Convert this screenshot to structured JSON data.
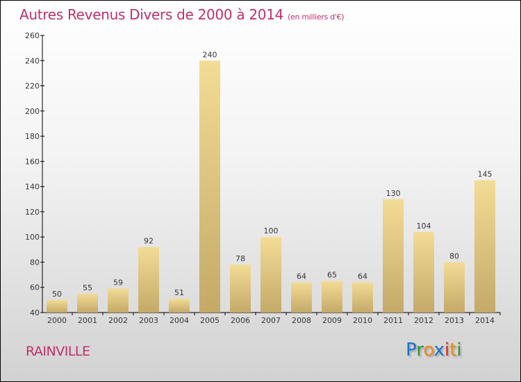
{
  "chart_data": {
    "type": "bar",
    "title": "Autres Revenus Divers de 2000 à 2014",
    "unit": "(en milliers d'€)",
    "xlabel": "",
    "ylabel": "",
    "categories": [
      "2000",
      "2001",
      "2002",
      "2003",
      "2004",
      "2005",
      "2006",
      "2007",
      "2008",
      "2009",
      "2010",
      "2011",
      "2012",
      "2013",
      "2014"
    ],
    "values": [
      50,
      55,
      59,
      92,
      51,
      240,
      78,
      100,
      64,
      65,
      64,
      130,
      104,
      80,
      145
    ],
    "ylim": [
      40,
      260
    ],
    "yticks": [
      40,
      60,
      80,
      100,
      120,
      140,
      160,
      180,
      200,
      220,
      240,
      260
    ],
    "grid": false,
    "bar_color_light": "#f3dc96",
    "bar_color_dark": "#c4a968"
  },
  "footer": {
    "city": "RAINVILLE",
    "logo": {
      "letters": [
        "P",
        "r",
        "o",
        "x",
        "i",
        "t",
        "i"
      ],
      "colors": [
        "#1a73c9",
        "#2a9a3a",
        "#f08a10",
        "#1a73c9",
        "#e2231a",
        "#f08a10",
        "#2a9a3a"
      ]
    }
  },
  "colors": {
    "title": "#c0306a"
  }
}
